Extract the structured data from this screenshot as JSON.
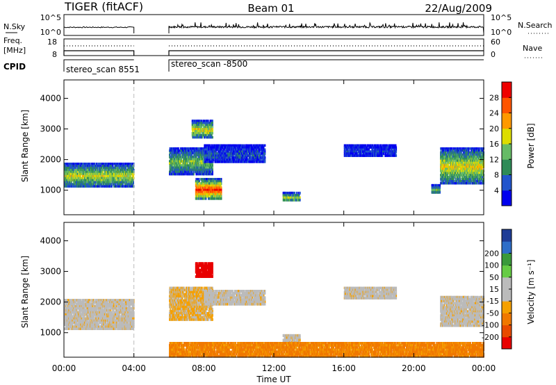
{
  "header": {
    "title": "TIGER (fitACF)",
    "beam": "Beam 01",
    "date": "22/Aug/2009"
  },
  "panels": {
    "noise": {
      "left_label": "N.Sky",
      "left_ticks": [
        "10^5",
        "10^0"
      ],
      "right_ticks": [
        "10^5",
        "10^0"
      ],
      "right_label": "N.Search"
    },
    "freq": {
      "left_label_top": "Freq.",
      "left_label_unit": "[MHz]",
      "left_ticks": [
        "18",
        "8"
      ],
      "right_ticks": [
        "60",
        "0"
      ],
      "right_label": "Nave"
    },
    "cpid": {
      "label": "CPID",
      "segments": [
        {
          "text": "stereo_scan 8551",
          "start_hour": 0,
          "end_hour": 4
        },
        {
          "text": "stereo_scan -8500",
          "start_hour": 6,
          "end_hour": 24
        }
      ]
    }
  },
  "colors": {
    "power_scale": [
      "#0000ee",
      "#2255cc",
      "#2e8b57",
      "#66bb66",
      "#dddd00",
      "#ff9900",
      "#ff5500",
      "#ee0000"
    ],
    "velocity_scale": [
      "#1e3c96",
      "#2e6ec8",
      "#3a9a3a",
      "#66cc44",
      "#bbbbbb",
      "#bbbbbb",
      "#f5a000",
      "#f07800",
      "#e84a00",
      "#e80000"
    ]
  },
  "chart_data": [
    {
      "type": "heatmap",
      "name": "power",
      "ylabel": "Slant Range [km]",
      "yticks": [
        1000,
        2000,
        3000,
        4000
      ],
      "ylim": [
        200,
        4600
      ],
      "xlim_hours": [
        0,
        24
      ],
      "colorbar": {
        "label": "Power [dB]",
        "ticks": [
          "4",
          "8",
          "12",
          "16",
          "20",
          "24",
          "28"
        ],
        "range": [
          0,
          32
        ]
      },
      "data_gap_hours": [
        4,
        6
      ],
      "echo_regions": [
        {
          "t0": 0.0,
          "t1": 4.0,
          "r0": 1100,
          "r1": 1900,
          "level": 0.55
        },
        {
          "t0": 6.0,
          "t1": 8.5,
          "r0": 1500,
          "r1": 2400,
          "level": 0.45
        },
        {
          "t0": 7.5,
          "t1": 9.0,
          "r0": 700,
          "r1": 1400,
          "level": 0.9
        },
        {
          "t0": 7.3,
          "t1": 8.5,
          "r0": 2700,
          "r1": 3300,
          "level": 0.6
        },
        {
          "t0": 8.0,
          "t1": 11.5,
          "r0": 1900,
          "r1": 2500,
          "level": 0.2
        },
        {
          "t0": 12.5,
          "t1": 13.5,
          "r0": 650,
          "r1": 950,
          "level": 0.5
        },
        {
          "t0": 16.0,
          "t1": 19.0,
          "r0": 2100,
          "r1": 2500,
          "level": 0.15
        },
        {
          "t0": 21.0,
          "t1": 21.5,
          "r0": 900,
          "r1": 1200,
          "level": 0.4
        },
        {
          "t0": 21.5,
          "t1": 24.0,
          "r0": 1200,
          "r1": 2400,
          "level": 0.6
        }
      ]
    },
    {
      "type": "heatmap",
      "name": "velocity",
      "ylabel": "Slant Range [km]",
      "yticks": [
        1000,
        2000,
        3000,
        4000
      ],
      "ylim": [
        200,
        4600
      ],
      "xlabel": "Time UT",
      "xticks": [
        "00:00",
        "04:00",
        "08:00",
        "12:00",
        "16:00",
        "20:00",
        "00:00"
      ],
      "xlim_hours": [
        0,
        24
      ],
      "colorbar": {
        "label": "Velocity [m s⁻¹]",
        "ticks": [
          "-200",
          "-100",
          "-50",
          "-15",
          "15",
          "50",
          "100",
          "200"
        ]
      },
      "data_gap_hours": [
        4,
        6
      ],
      "echo_regions": [
        {
          "t0": 0.0,
          "t1": 4.0,
          "r0": 1100,
          "r1": 2100,
          "v": 0
        },
        {
          "t0": 6.0,
          "t1": 8.5,
          "r0": 1400,
          "r1": 2500,
          "v": -20
        },
        {
          "t0": 7.5,
          "t1": 8.5,
          "r0": 2800,
          "r1": 3300,
          "v": -250
        },
        {
          "t0": 8.0,
          "t1": 11.5,
          "r0": 1900,
          "r1": 2400,
          "v": 0
        },
        {
          "t0": 12.5,
          "t1": 13.5,
          "r0": 650,
          "r1": 950,
          "v": 0
        },
        {
          "t0": 16.0,
          "t1": 19.0,
          "r0": 2100,
          "r1": 2500,
          "v": 0
        },
        {
          "t0": 21.5,
          "t1": 24.0,
          "r0": 1200,
          "r1": 2200,
          "v": 0
        },
        {
          "t0": 6.0,
          "t1": 24.0,
          "r0": 200,
          "r1": 700,
          "v": -60
        }
      ]
    }
  ]
}
